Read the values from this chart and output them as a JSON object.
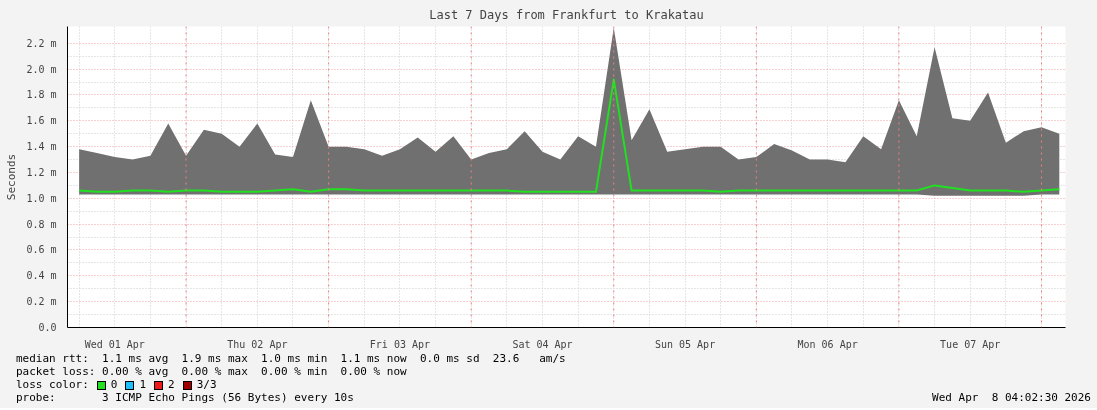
{
  "chart_data": {
    "type": "line",
    "title": "Last 7 Days from Frankfurt to Krakatau",
    "ylabel": "Seconds",
    "x": [
      "2026-04-01T06:00",
      "2026-04-01T09:00",
      "2026-04-01T12:00",
      "2026-04-01T15:00",
      "2026-04-01T18:00",
      "2026-04-01T21:00",
      "2026-04-02T00:00",
      "2026-04-02T03:00",
      "2026-04-02T06:00",
      "2026-04-02T09:00",
      "2026-04-02T12:00",
      "2026-04-02T15:00",
      "2026-04-02T18:00",
      "2026-04-02T21:00",
      "2026-04-03T00:00",
      "2026-04-03T03:00",
      "2026-04-03T06:00",
      "2026-04-03T09:00",
      "2026-04-03T12:00",
      "2026-04-03T15:00",
      "2026-04-03T18:00",
      "2026-04-03T21:00",
      "2026-04-04T00:00",
      "2026-04-04T03:00",
      "2026-04-04T06:00",
      "2026-04-04T09:00",
      "2026-04-04T12:00",
      "2026-04-04T15:00",
      "2026-04-04T18:00",
      "2026-04-04T21:00",
      "2026-04-05T00:00",
      "2026-04-05T03:00",
      "2026-04-05T06:00",
      "2026-04-05T09:00",
      "2026-04-05T12:00",
      "2026-04-05T15:00",
      "2026-04-05T18:00",
      "2026-04-05T21:00",
      "2026-04-06T00:00",
      "2026-04-06T03:00",
      "2026-04-06T06:00",
      "2026-04-06T09:00",
      "2026-04-06T12:00",
      "2026-04-06T15:00",
      "2026-04-06T18:00",
      "2026-04-06T21:00",
      "2026-04-07T00:00",
      "2026-04-07T03:00",
      "2026-04-07T06:00",
      "2026-04-07T09:00",
      "2026-04-07T12:00",
      "2026-04-07T15:00",
      "2026-04-07T18:00",
      "2026-04-07T21:00",
      "2026-04-08T00:00",
      "2026-04-08T03:00"
    ],
    "series": [
      {
        "name": "0",
        "color": "#20e020",
        "values": [
          1.06,
          1.05,
          1.05,
          1.06,
          1.06,
          1.05,
          1.06,
          1.06,
          1.05,
          1.05,
          1.05,
          1.06,
          1.07,
          1.05,
          1.07,
          1.07,
          1.06,
          1.06,
          1.06,
          1.06,
          1.06,
          1.06,
          1.06,
          1.06,
          1.06,
          1.05,
          1.05,
          1.05,
          1.05,
          1.05,
          1.92,
          1.06,
          1.06,
          1.06,
          1.06,
          1.06,
          1.05,
          1.06,
          1.06,
          1.06,
          1.06,
          1.06,
          1.06,
          1.06,
          1.06,
          1.06,
          1.06,
          1.06,
          1.1,
          1.08,
          1.06,
          1.06,
          1.06,
          1.05,
          1.06,
          1.07
        ],
        "lower": [
          1.03,
          1.03,
          1.03,
          1.03,
          1.03,
          1.03,
          1.03,
          1.03,
          1.03,
          1.03,
          1.03,
          1.03,
          1.03,
          1.03,
          1.03,
          1.03,
          1.03,
          1.03,
          1.03,
          1.03,
          1.03,
          1.03,
          1.03,
          1.03,
          1.03,
          1.03,
          1.03,
          1.03,
          1.03,
          1.03,
          1.03,
          1.03,
          1.03,
          1.03,
          1.03,
          1.03,
          1.03,
          1.03,
          1.03,
          1.03,
          1.03,
          1.03,
          1.03,
          1.03,
          1.03,
          1.03,
          1.03,
          1.03,
          1.02,
          1.02,
          1.02,
          1.02,
          1.02,
          1.02,
          1.03,
          1.03
        ],
        "upper": [
          1.38,
          1.35,
          1.32,
          1.3,
          1.33,
          1.58,
          1.33,
          1.53,
          1.5,
          1.4,
          1.58,
          1.34,
          1.32,
          1.76,
          1.4,
          1.4,
          1.38,
          1.33,
          1.38,
          1.47,
          1.36,
          1.48,
          1.3,
          1.35,
          1.38,
          1.52,
          1.36,
          1.3,
          1.48,
          1.4,
          2.32,
          1.45,
          1.69,
          1.36,
          1.38,
          1.4,
          1.4,
          1.3,
          1.32,
          1.42,
          1.37,
          1.3,
          1.3,
          1.28,
          1.48,
          1.38,
          1.76,
          1.48,
          2.17,
          1.62,
          1.6,
          1.82,
          1.43,
          1.52,
          1.55,
          1.5
        ]
      },
      {
        "name": "1",
        "color": "#1fbfff",
        "values": [
          null,
          null,
          null,
          null,
          null,
          null,
          null,
          null,
          null,
          null,
          null,
          null,
          null,
          null,
          null,
          null,
          null,
          null,
          null,
          null,
          null,
          null,
          null,
          null,
          null,
          null,
          null,
          null,
          null,
          null,
          null,
          null,
          null,
          null,
          null,
          null,
          null,
          null,
          null,
          null,
          null,
          null,
          null,
          null,
          null,
          null,
          null,
          null,
          null,
          null,
          null,
          null,
          null,
          null,
          null,
          null
        ]
      },
      {
        "name": "2",
        "color": "#ee1a1a",
        "values": [
          null,
          null,
          null,
          null,
          null,
          null,
          null,
          null,
          null,
          null,
          null,
          null,
          null,
          null,
          null,
          null,
          null,
          null,
          null,
          null,
          null,
          null,
          null,
          null,
          null,
          null,
          null,
          null,
          null,
          null,
          null,
          null,
          null,
          null,
          null,
          null,
          null,
          null,
          null,
          null,
          null,
          null,
          null,
          null,
          null,
          null,
          null,
          null,
          null,
          null,
          null,
          null,
          null,
          null,
          null,
          null
        ]
      },
      {
        "name": "3/3",
        "color": "#a00000",
        "values": [
          null,
          null,
          null,
          null,
          null,
          null,
          null,
          null,
          null,
          null,
          null,
          null,
          null,
          null,
          null,
          null,
          null,
          null,
          null,
          null,
          null,
          null,
          null,
          null,
          null,
          null,
          null,
          null,
          null,
          null,
          null,
          null,
          null,
          null,
          null,
          null,
          null,
          null,
          null,
          null,
          null,
          null,
          null,
          null,
          null,
          null,
          null,
          null,
          null,
          null,
          null,
          null,
          null,
          null,
          null,
          null
        ]
      }
    ],
    "legend": "bottom",
    "legend_title": "loss color:",
    "grid": true,
    "xlim": [
      "2026-04-01T04:02:30",
      "2026-04-08T04:02:30"
    ],
    "xticks": [
      {
        "value": "2026-04-01T12:00",
        "label": "Wed 01 Apr"
      },
      {
        "value": "2026-04-02T12:00",
        "label": "Thu 02 Apr"
      },
      {
        "value": "2026-04-03T12:00",
        "label": "Fri 03 Apr"
      },
      {
        "value": "2026-04-04T12:00",
        "label": "Sat 04 Apr"
      },
      {
        "value": "2026-04-05T12:00",
        "label": "Sun 05 Apr"
      },
      {
        "value": "2026-04-06T12:00",
        "label": "Mon 06 Apr"
      },
      {
        "value": "2026-04-07T12:00",
        "label": "Tue 07 Apr"
      }
    ],
    "ylim": [
      0,
      2.33
    ],
    "yticks": [
      {
        "value": 0,
        "label": "0.0"
      },
      {
        "value": 0.2,
        "label": "0.2 m"
      },
      {
        "value": 0.4,
        "label": "0.4 m"
      },
      {
        "value": 0.6,
        "label": "0.6 m"
      },
      {
        "value": 0.8,
        "label": "0.8 m"
      },
      {
        "value": 1.0,
        "label": "1.0 m"
      },
      {
        "value": 1.2,
        "label": "1.2 m"
      },
      {
        "value": 1.4,
        "label": "1.4 m"
      },
      {
        "value": 1.6,
        "label": "1.6 m"
      },
      {
        "value": 1.8,
        "label": "1.8 m"
      },
      {
        "value": 2.0,
        "label": "2.0 m"
      },
      {
        "value": 2.2,
        "label": "2.2 m"
      }
    ],
    "ref_lines": [
      {
        "axis": "x",
        "value": "2026-04-02T00:00",
        "color": "#f08080",
        "line_style": "dotted"
      },
      {
        "axis": "x",
        "value": "2026-04-03T00:00",
        "color": "#f08080",
        "line_style": "dotted"
      },
      {
        "axis": "x",
        "value": "2026-04-04T00:00",
        "color": "#f08080",
        "line_style": "dotted"
      },
      {
        "axis": "x",
        "value": "2026-04-05T00:00",
        "color": "#f08080",
        "line_style": "dotted"
      },
      {
        "axis": "x",
        "value": "2026-04-06T00:00",
        "color": "#f08080",
        "line_style": "dotted"
      },
      {
        "axis": "x",
        "value": "2026-04-07T00:00",
        "color": "#f08080",
        "line_style": "dotted"
      },
      {
        "axis": "x",
        "value": "2026-04-08T00:00",
        "color": "#f08080",
        "line_style": "dotted"
      }
    ],
    "annotations": [
      "median rtt:  1.1 ms avg  1.9 ms max  1.0 ms min  1.1 ms now  0.0 ms sd  23.6   am/s",
      "packet loss: 0.00 % avg  0.00 % max  0.00 % min  0.00 % now",
      "probe:       3 ICMP Echo Pings (56 Bytes) every 10s",
      "Wed Apr  8 04:02:30 2026"
    ]
  }
}
